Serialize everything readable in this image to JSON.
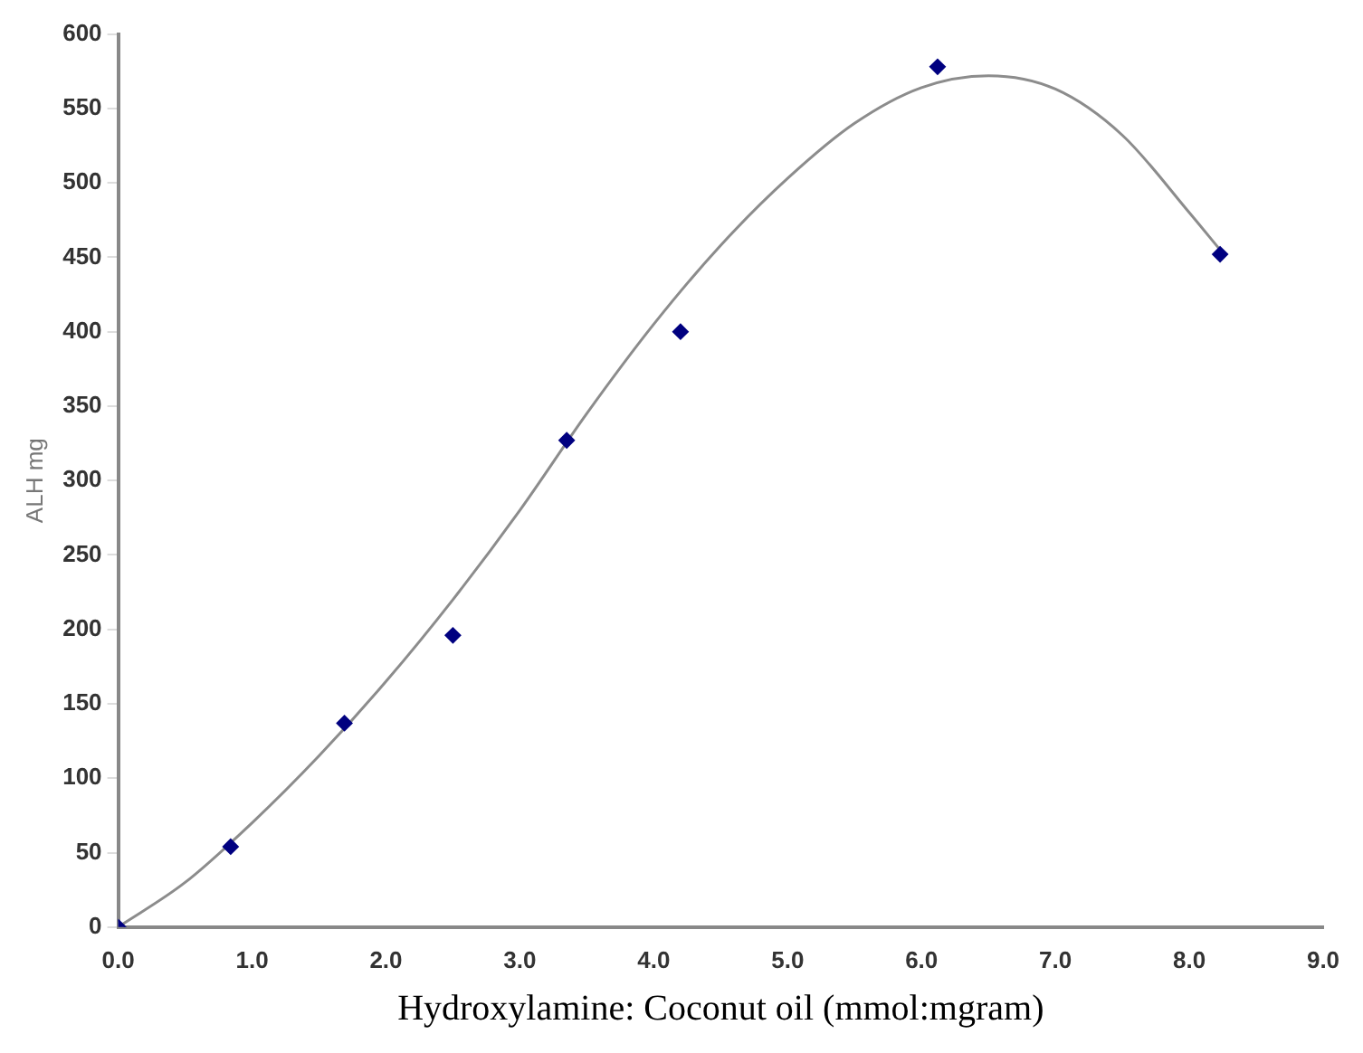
{
  "chart_data": {
    "type": "scatter",
    "xlabel": "Hydroxylamine: Coconut oil (mmol:mgram)",
    "ylabel": "ALH mg",
    "xlim": [
      0,
      9
    ],
    "ylim": [
      0,
      600
    ],
    "xticks": [
      {
        "value": 0,
        "label": "0.0"
      },
      {
        "value": 1,
        "label": "1.0"
      },
      {
        "value": 2,
        "label": "2.0"
      },
      {
        "value": 3,
        "label": "3.0"
      },
      {
        "value": 4,
        "label": "4.0"
      },
      {
        "value": 5,
        "label": "5.0"
      },
      {
        "value": 6,
        "label": "6.0"
      },
      {
        "value": 7,
        "label": "7.0"
      },
      {
        "value": 8,
        "label": "8.0"
      },
      {
        "value": 9,
        "label": "9.0"
      }
    ],
    "yticks": [
      0,
      50,
      100,
      150,
      200,
      250,
      300,
      350,
      400,
      450,
      500,
      550,
      600
    ],
    "grid": false,
    "series": [
      {
        "color": "#000080",
        "marker": "diamond",
        "x": [
          0,
          0.84,
          1.69,
          2.5,
          3.35,
          4.2,
          6.12,
          8.23
        ],
        "values": [
          0,
          54,
          137,
          196,
          327,
          400,
          578,
          452
        ]
      },
      {
        "type": "line",
        "color": "#8c8c8c",
        "marker": "none",
        "line_style": "solid",
        "x": [
          0,
          0.5,
          1,
          1.5,
          2,
          2.5,
          3,
          3.5,
          4,
          4.5,
          5,
          5.5,
          6,
          6.5,
          7,
          7.5,
          8,
          8.23
        ],
        "values": [
          0,
          30,
          70,
          115,
          165,
          220,
          280,
          345,
          405,
          458,
          503,
          540,
          564,
          572,
          563,
          532,
          480,
          455
        ]
      }
    ]
  }
}
